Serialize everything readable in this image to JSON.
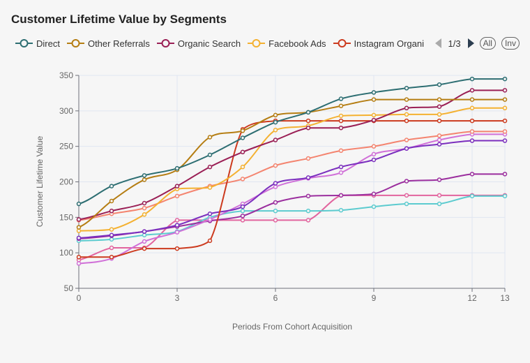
{
  "title": "Customer Lifetime Value by Segments",
  "legend": {
    "items": [
      {
        "label": "Direct",
        "color": "#2d6e72"
      },
      {
        "label": "Other Referrals",
        "color": "#b57d12"
      },
      {
        "label": "Organic Search",
        "color": "#9a1f55"
      },
      {
        "label": "Facebook Ads",
        "color": "#f4b131"
      },
      {
        "label": "Instagram Organi",
        "color": "#cc3a1e"
      }
    ],
    "page": "1/3",
    "all_label": "All",
    "inv_label": "Inv"
  },
  "chart_data": {
    "type": "line",
    "title": "Customer Lifetime Value by Segments",
    "xlabel": "Periods From Cohort Acquisition",
    "ylabel": "Customer Lifetime Value",
    "xlim": [
      0,
      13
    ],
    "ylim": [
      50,
      350
    ],
    "xticks": [
      0,
      3,
      6,
      9,
      12,
      13
    ],
    "yticks": [
      50,
      100,
      150,
      200,
      250,
      300,
      350
    ],
    "grid": true,
    "legend_position": "top",
    "x": [
      0,
      1,
      2,
      3,
      4,
      5,
      6,
      7,
      8,
      9,
      10,
      11,
      12,
      13
    ],
    "series": [
      {
        "name": "Direct",
        "color": "#2d6e72",
        "values": [
          169,
          194,
          209,
          219,
          238,
          262,
          284,
          298,
          317,
          326,
          332,
          337,
          345,
          345
        ]
      },
      {
        "name": "Other Referrals",
        "color": "#b57d12",
        "values": [
          136,
          173,
          203,
          217,
          263,
          272,
          294,
          298,
          307,
          316,
          316,
          316,
          316,
          316
        ]
      },
      {
        "name": "Organic Search",
        "color": "#9a1f55",
        "values": [
          147,
          159,
          170,
          194,
          221,
          242,
          259,
          276,
          276,
          287,
          304,
          306,
          329,
          329
        ]
      },
      {
        "name": "Facebook Ads",
        "color": "#f4b131",
        "values": [
          131,
          133,
          154,
          190,
          192,
          221,
          273,
          279,
          293,
          294,
          295,
          295,
          304,
          304
        ]
      },
      {
        "name": "Instagram Organic",
        "color": "#cc3a1e",
        "values": [
          94,
          94,
          106,
          106,
          117,
          274,
          286,
          286,
          286,
          286,
          286,
          286,
          286,
          286
        ]
      },
      {
        "name": "",
        "color": "#f4846f",
        "values": [
          146,
          155,
          163,
          180,
          194,
          204,
          223,
          233,
          244,
          250,
          259,
          265,
          271,
          271
        ]
      },
      {
        "name": "",
        "color": "#7b2fbe",
        "values": [
          121,
          125,
          130,
          139,
          155,
          165,
          198,
          206,
          221,
          231,
          247,
          253,
          258,
          258
        ]
      },
      {
        "name": "",
        "color": "#d070d8",
        "values": [
          85,
          92,
          116,
          129,
          147,
          169,
          193,
          205,
          213,
          239,
          247,
          259,
          267,
          267
        ]
      },
      {
        "name": "",
        "color": "#9b2e9e",
        "values": [
          120,
          124,
          130,
          137,
          145,
          152,
          171,
          180,
          181,
          183,
          201,
          203,
          211,
          211
        ]
      },
      {
        "name": "",
        "color": "#5ccbcf",
        "values": [
          117,
          119,
          125,
          130,
          150,
          159,
          159,
          159,
          160,
          165,
          169,
          169,
          180,
          180
        ]
      },
      {
        "name": "",
        "color": "#e2649e",
        "values": [
          90,
          107,
          107,
          146,
          146,
          146,
          146,
          146,
          181,
          181,
          181,
          181,
          181,
          181
        ]
      }
    ]
  }
}
